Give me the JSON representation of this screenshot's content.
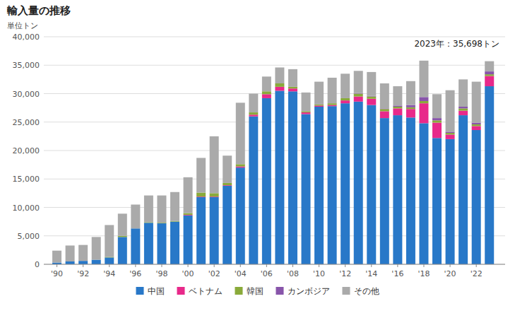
{
  "chart_data": {
    "type": "bar",
    "stacked": true,
    "title": "輸入量の推移",
    "y_label": "単位トン",
    "annotation": "2023年：35,698トン",
    "x": [
      1990,
      1991,
      1992,
      1993,
      1994,
      1995,
      1996,
      1997,
      1998,
      1999,
      2000,
      2001,
      2002,
      2003,
      2004,
      2005,
      2006,
      2007,
      2008,
      2009,
      2010,
      2011,
      2012,
      2013,
      2014,
      2015,
      2016,
      2017,
      2018,
      2019,
      2020,
      2021,
      2022,
      2023
    ],
    "xlim": [
      1989.0,
      2024.2
    ],
    "xticks": [
      {
        "value": 1990,
        "label": "'90"
      },
      {
        "value": 1992,
        "label": "'92"
      },
      {
        "value": 1994,
        "label": "'94"
      },
      {
        "value": 1996,
        "label": "'96"
      },
      {
        "value": 1998,
        "label": "'98"
      },
      {
        "value": 2000,
        "label": "'00"
      },
      {
        "value": 2002,
        "label": "'02"
      },
      {
        "value": 2004,
        "label": "'04"
      },
      {
        "value": 2006,
        "label": "'06"
      },
      {
        "value": 2008,
        "label": "'08"
      },
      {
        "value": 2010,
        "label": "'10"
      },
      {
        "value": 2012,
        "label": "'12"
      },
      {
        "value": 2014,
        "label": "'14"
      },
      {
        "value": 2016,
        "label": "'16"
      },
      {
        "value": 2018,
        "label": "'18"
      },
      {
        "value": 2020,
        "label": "'20"
      },
      {
        "value": 2022,
        "label": "'22"
      }
    ],
    "ylim": [
      0,
      40000
    ],
    "yticks": [
      0,
      {
        "value": 5000,
        "label": "5,000"
      },
      {
        "value": 10000,
        "label": "10,000"
      },
      {
        "value": 15000,
        "label": "15,000"
      },
      {
        "value": 20000,
        "label": "20,000"
      },
      {
        "value": 25000,
        "label": "25,000"
      },
      {
        "value": 30000,
        "label": "30,000"
      },
      {
        "value": 35000,
        "label": "35,000"
      },
      {
        "value": 40000,
        "label": "40,000"
      }
    ],
    "grid": true,
    "legend": "bottom",
    "series": [
      {
        "name": "中国",
        "color": "#2878c8",
        "values": [
          300,
          500,
          600,
          800,
          1200,
          4800,
          6300,
          7300,
          7200,
          7500,
          8600,
          11800,
          11800,
          13800,
          17000,
          26000,
          29200,
          30500,
          30400,
          26400,
          27700,
          27800,
          28300,
          28600,
          28000,
          25700,
          26200,
          25800,
          24800,
          22200,
          22000,
          26200,
          23600,
          31300
        ]
      },
      {
        "name": "ベトナム",
        "color": "#e8298a",
        "values": [
          0,
          0,
          0,
          0,
          0,
          0,
          0,
          0,
          0,
          0,
          100,
          100,
          100,
          100,
          200,
          300,
          700,
          700,
          500,
          300,
          200,
          200,
          500,
          900,
          1100,
          1200,
          1200,
          1500,
          3500,
          2700,
          800,
          800,
          700,
          1800
        ]
      },
      {
        "name": "韓国",
        "color": "#8aaa3a",
        "values": [
          0,
          0,
          0,
          0,
          100,
          200,
          0,
          100,
          100,
          100,
          300,
          700,
          600,
          400,
          400,
          400,
          500,
          600,
          300,
          200,
          200,
          300,
          400,
          500,
          400,
          400,
          300,
          300,
          400,
          400,
          300,
          400,
          300,
          300
        ]
      },
      {
        "name": "カンボジア",
        "color": "#8855aa",
        "values": [
          0,
          0,
          0,
          0,
          0,
          0,
          0,
          0,
          0,
          0,
          0,
          0,
          0,
          0,
          0,
          0,
          0,
          0,
          0,
          0,
          0,
          0,
          0,
          100,
          100,
          100,
          200,
          400,
          700,
          400,
          200,
          300,
          300,
          500
        ]
      },
      {
        "name": "その他",
        "color": "#aaaaaa",
        "values": [
          2100,
          2800,
          2800,
          4000,
          5600,
          3900,
          4200,
          4700,
          4800,
          5100,
          6300,
          6100,
          10000,
          4800,
          10800,
          3300,
          2600,
          2800,
          3100,
          3300,
          4000,
          4500,
          4300,
          3900,
          4200,
          4400,
          3400,
          4200,
          6400,
          4200,
          7300,
          4800,
          7200,
          1800
        ]
      }
    ]
  }
}
